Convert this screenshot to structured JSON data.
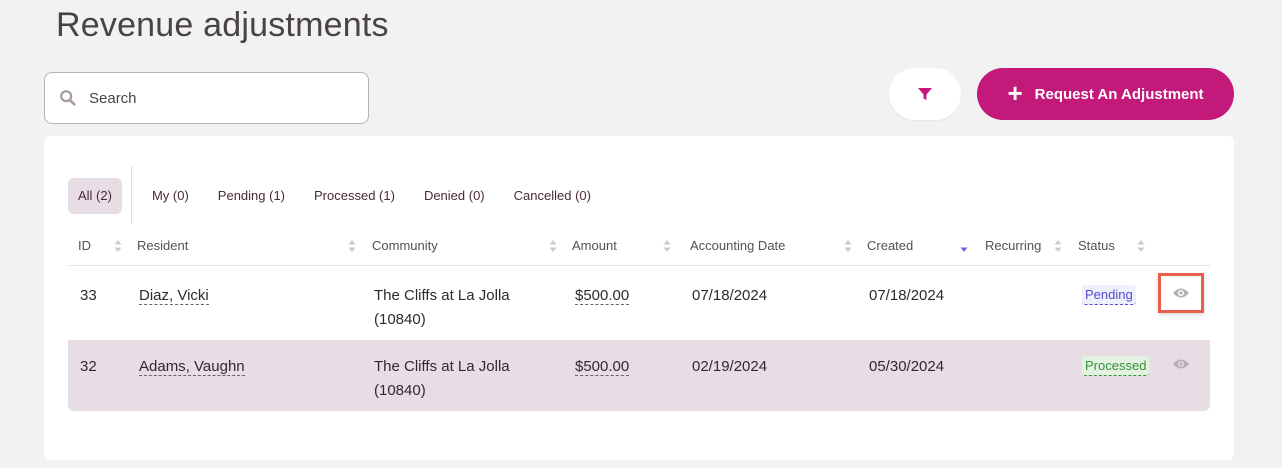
{
  "page": {
    "title": "Revenue adjustments"
  },
  "search": {
    "placeholder": "Search"
  },
  "toolbar": {
    "request_label": "Request An Adjustment"
  },
  "tabs": [
    {
      "label": "All (2)",
      "active": true
    },
    {
      "label": "My (0)"
    },
    {
      "label": "Pending (1)"
    },
    {
      "label": "Processed (1)"
    },
    {
      "label": "Denied (0)"
    },
    {
      "label": "Cancelled (0)"
    }
  ],
  "columns": {
    "id": "ID",
    "resident": "Resident",
    "community": "Community",
    "amount": "Amount",
    "accounting_date": "Accounting Date",
    "created": "Created",
    "recurring": "Recurring",
    "status": "Status"
  },
  "rows": [
    {
      "id": "33",
      "resident": "Diaz, Vicki",
      "community_line1": "The Cliffs at La Jolla",
      "community_line2": "(10840)",
      "amount": "$500.00",
      "accounting_date": "07/18/2024",
      "created": "07/18/2024",
      "recurring": "",
      "status": "Pending"
    },
    {
      "id": "32",
      "resident": "Adams, Vaughn",
      "community_line1": "The Cliffs at La Jolla",
      "community_line2": "(10840)",
      "amount": "$500.00",
      "accounting_date": "02/19/2024",
      "created": "05/30/2024",
      "recurring": "",
      "status": "Processed"
    }
  ],
  "colors": {
    "accent": "#c2197a",
    "pending": "#5b4ad0",
    "processed": "#3a8f3a",
    "highlight": "#e8604a"
  },
  "icons": {
    "search": "search-icon",
    "filter": "filter-icon",
    "plus": "plus-icon",
    "view": "eye-icon",
    "sort": "sort-icon"
  }
}
